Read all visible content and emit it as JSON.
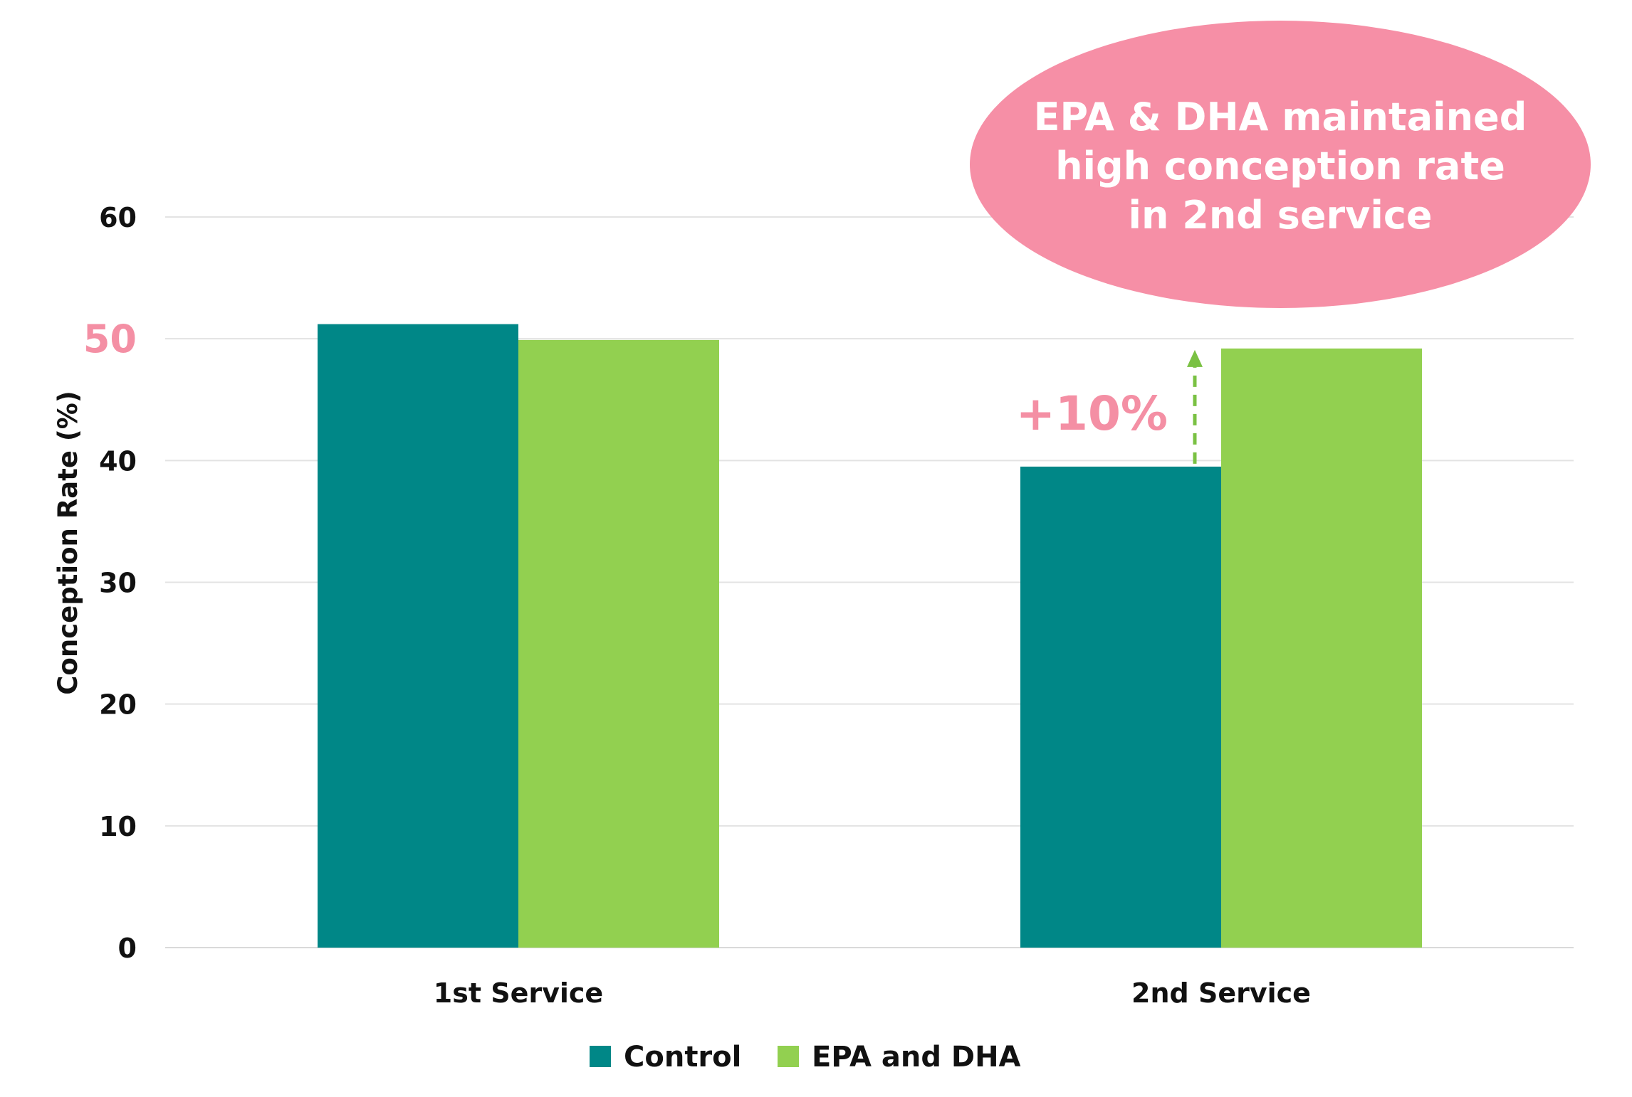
{
  "chart_data": {
    "type": "bar",
    "categories": [
      "1st Service",
      "2nd Service"
    ],
    "series": [
      {
        "name": "Control",
        "values": [
          51.2,
          39.5
        ],
        "color": "#008787"
      },
      {
        "name": "EPA and DHA",
        "values": [
          49.9,
          49.2
        ],
        "color": "#92d050"
      }
    ],
    "ylabel": "Conception Rate (%)",
    "xlabel": "",
    "ylim": [
      0,
      60
    ],
    "yticks": [
      0,
      10,
      20,
      30,
      40,
      50,
      60
    ],
    "highlighted_tick": 50,
    "grid": true,
    "legend_placement": "bottom",
    "annotations": {
      "callout": {
        "lines": [
          "EPA & DHA maintained",
          "high conception rate",
          "in 2nd service"
        ],
        "color": "#f68fa6"
      },
      "delta": {
        "label": "+10%",
        "category": "2nd Service",
        "color": "#f48fa4",
        "arrow_color": "#7ac143"
      }
    }
  }
}
